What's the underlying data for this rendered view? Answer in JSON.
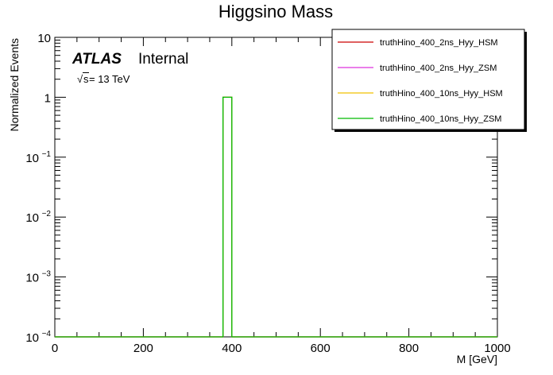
{
  "chart_data": {
    "type": "histogram",
    "title": "Higgsino Mass",
    "xlabel": "M [GeV]",
    "ylabel": "Normalized Events",
    "xlim": [
      0,
      1000
    ],
    "ylim": [
      0.0001,
      10
    ],
    "yscale": "log",
    "grid": false,
    "x_ticks": [
      0,
      200,
      400,
      600,
      800,
      1000
    ],
    "y_ticks": [
      {
        "value": 10,
        "base": "10",
        "exp": ""
      },
      {
        "value": 1,
        "base": "1",
        "exp": ""
      },
      {
        "value": 0.1,
        "base": "10",
        "exp": "−1"
      },
      {
        "value": 0.01,
        "base": "10",
        "exp": "−2"
      },
      {
        "value": 0.001,
        "base": "10",
        "exp": "−3"
      },
      {
        "value": 0.0001,
        "base": "10",
        "exp": "−4"
      }
    ],
    "legend_position": "top-right",
    "series": [
      {
        "name": "truthHino_400_2ns_Hyy_HSM",
        "color": "#cc0000",
        "bins": [
          {
            "x0": 380,
            "x1": 400,
            "y": 1
          }
        ]
      },
      {
        "name": "truthHino_400_2ns_Hyy_ZSM",
        "color": "#dd33dd",
        "bins": [
          {
            "x0": 380,
            "x1": 400,
            "y": 1
          }
        ]
      },
      {
        "name": "truthHino_400_10ns_Hyy_HSM",
        "color": "#f0c000",
        "bins": [
          {
            "x0": 380,
            "x1": 400,
            "y": 1
          }
        ]
      },
      {
        "name": "truthHino_400_10ns_Hyy_ZSM",
        "color": "#00bb00",
        "bins": [
          {
            "x0": 380,
            "x1": 400,
            "y": 1
          }
        ]
      }
    ],
    "annotations": {
      "atlas": "ATLAS",
      "internal": "Internal",
      "energy_root": "√",
      "energy_s": "s",
      "energy_value": " = 13 TeV"
    }
  }
}
